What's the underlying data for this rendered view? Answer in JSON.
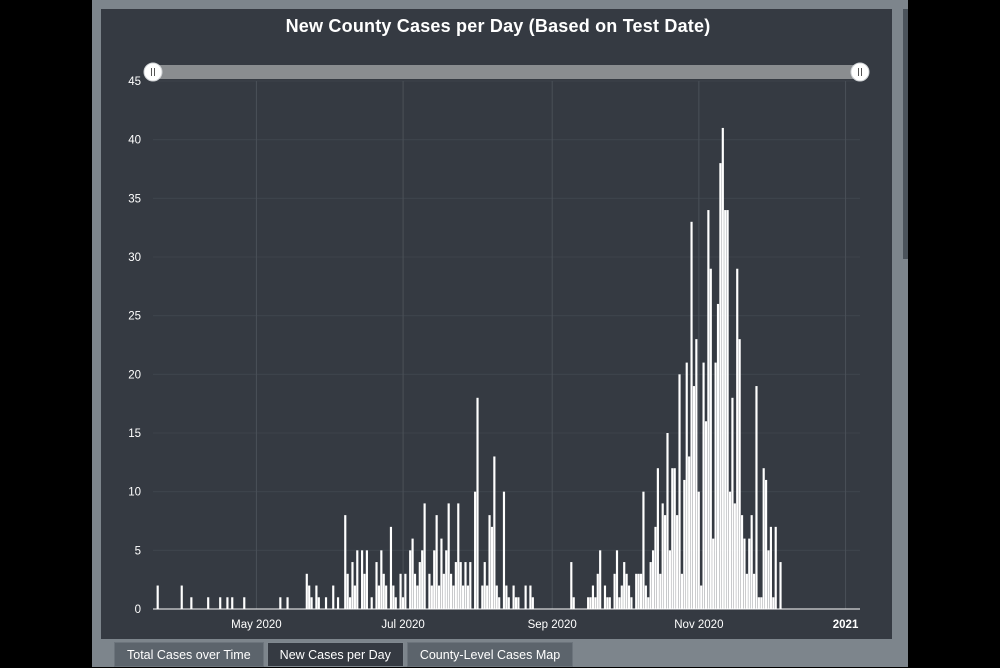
{
  "tabs": [
    {
      "label": "Total Cases over Time",
      "active": false
    },
    {
      "label": "New Cases per Day",
      "active": true
    },
    {
      "label": "County-Level Cases Map",
      "active": false
    }
  ],
  "colors": {
    "background": "#353a42",
    "bars": "#ffffff",
    "grid": "#4a5058",
    "scrollbar": "#8a8d90",
    "frame": "#7d858c"
  },
  "chart_data": {
    "type": "bar",
    "title": "New County Cases per Day (Based on Test Date)",
    "xlabel": "",
    "ylabel": "",
    "x_range": [
      "2020-03-19",
      "2021-01-07"
    ],
    "ylim": [
      0,
      45
    ],
    "y_ticks": [
      0,
      5,
      10,
      15,
      20,
      25,
      30,
      35,
      40,
      45
    ],
    "x_ticks": [
      {
        "date": "2020-05-01",
        "label": "May 2020",
        "bold": false
      },
      {
        "date": "2020-07-01",
        "label": "Jul 2020",
        "bold": false
      },
      {
        "date": "2020-09-01",
        "label": "Sep 2020",
        "bold": false
      },
      {
        "date": "2020-11-01",
        "label": "Nov 2020",
        "bold": false
      },
      {
        "date": "2021-01-01",
        "label": "2021",
        "bold": true
      }
    ],
    "grid": "vertical and horizontal",
    "range_slider": true,
    "series": [
      {
        "points": [
          [
            "2020-03-21",
            2
          ],
          [
            "2020-03-31",
            2
          ],
          [
            "2020-04-04",
            1
          ],
          [
            "2020-04-11",
            1
          ],
          [
            "2020-04-16",
            1
          ],
          [
            "2020-04-19",
            1
          ],
          [
            "2020-04-21",
            1
          ],
          [
            "2020-04-26",
            1
          ],
          [
            "2020-05-11",
            1
          ],
          [
            "2020-05-14",
            1
          ],
          [
            "2020-05-22",
            3
          ],
          [
            "2020-05-23",
            2
          ],
          [
            "2020-05-24",
            1
          ],
          [
            "2020-05-26",
            2
          ],
          [
            "2020-05-27",
            1
          ],
          [
            "2020-05-30",
            1
          ],
          [
            "2020-06-02",
            2
          ],
          [
            "2020-06-04",
            1
          ],
          [
            "2020-06-07",
            8
          ],
          [
            "2020-06-08",
            3
          ],
          [
            "2020-06-09",
            1
          ],
          [
            "2020-06-10",
            4
          ],
          [
            "2020-06-11",
            2
          ],
          [
            "2020-06-12",
            5
          ],
          [
            "2020-06-14",
            5
          ],
          [
            "2020-06-15",
            3
          ],
          [
            "2020-06-16",
            5
          ],
          [
            "2020-06-18",
            1
          ],
          [
            "2020-06-20",
            4
          ],
          [
            "2020-06-21",
            2
          ],
          [
            "2020-06-22",
            5
          ],
          [
            "2020-06-23",
            3
          ],
          [
            "2020-06-24",
            2
          ],
          [
            "2020-06-26",
            7
          ],
          [
            "2020-06-27",
            2
          ],
          [
            "2020-06-28",
            1
          ],
          [
            "2020-06-30",
            3
          ],
          [
            "2020-07-01",
            1
          ],
          [
            "2020-07-02",
            3
          ],
          [
            "2020-07-04",
            5
          ],
          [
            "2020-07-05",
            6
          ],
          [
            "2020-07-06",
            3
          ],
          [
            "2020-07-07",
            2
          ],
          [
            "2020-07-08",
            4
          ],
          [
            "2020-07-09",
            5
          ],
          [
            "2020-07-10",
            9
          ],
          [
            "2020-07-12",
            3
          ],
          [
            "2020-07-13",
            2
          ],
          [
            "2020-07-14",
            5
          ],
          [
            "2020-07-15",
            8
          ],
          [
            "2020-07-16",
            2
          ],
          [
            "2020-07-17",
            6
          ],
          [
            "2020-07-18",
            3
          ],
          [
            "2020-07-19",
            5
          ],
          [
            "2020-07-20",
            9
          ],
          [
            "2020-07-21",
            3
          ],
          [
            "2020-07-22",
            2
          ],
          [
            "2020-07-23",
            4
          ],
          [
            "2020-07-24",
            9
          ],
          [
            "2020-07-25",
            4
          ],
          [
            "2020-07-26",
            2
          ],
          [
            "2020-07-27",
            4
          ],
          [
            "2020-07-28",
            2
          ],
          [
            "2020-07-29",
            4
          ],
          [
            "2020-07-31",
            10
          ],
          [
            "2020-08-01",
            18
          ],
          [
            "2020-08-03",
            2
          ],
          [
            "2020-08-04",
            4
          ],
          [
            "2020-08-05",
            2
          ],
          [
            "2020-08-06",
            8
          ],
          [
            "2020-08-07",
            7
          ],
          [
            "2020-08-08",
            13
          ],
          [
            "2020-08-09",
            2
          ],
          [
            "2020-08-10",
            1
          ],
          [
            "2020-08-12",
            10
          ],
          [
            "2020-08-13",
            2
          ],
          [
            "2020-08-14",
            1
          ],
          [
            "2020-08-16",
            2
          ],
          [
            "2020-08-17",
            1
          ],
          [
            "2020-08-18",
            1
          ],
          [
            "2020-08-21",
            2
          ],
          [
            "2020-08-23",
            2
          ],
          [
            "2020-08-24",
            1
          ],
          [
            "2020-09-09",
            4
          ],
          [
            "2020-09-10",
            1
          ],
          [
            "2020-09-16",
            1
          ],
          [
            "2020-09-17",
            1
          ],
          [
            "2020-09-18",
            2
          ],
          [
            "2020-09-19",
            1
          ],
          [
            "2020-09-20",
            3
          ],
          [
            "2020-09-21",
            5
          ],
          [
            "2020-09-23",
            2
          ],
          [
            "2020-09-24",
            1
          ],
          [
            "2020-09-25",
            1
          ],
          [
            "2020-09-27",
            3
          ],
          [
            "2020-09-28",
            5
          ],
          [
            "2020-09-29",
            1
          ],
          [
            "2020-09-30",
            2
          ],
          [
            "2020-10-01",
            4
          ],
          [
            "2020-10-02",
            3
          ],
          [
            "2020-10-03",
            2
          ],
          [
            "2020-10-04",
            1
          ],
          [
            "2020-10-06",
            3
          ],
          [
            "2020-10-07",
            3
          ],
          [
            "2020-10-08",
            3
          ],
          [
            "2020-10-09",
            10
          ],
          [
            "2020-10-10",
            2
          ],
          [
            "2020-10-11",
            1
          ],
          [
            "2020-10-12",
            4
          ],
          [
            "2020-10-13",
            5
          ],
          [
            "2020-10-14",
            7
          ],
          [
            "2020-10-15",
            12
          ],
          [
            "2020-10-16",
            3
          ],
          [
            "2020-10-17",
            9
          ],
          [
            "2020-10-18",
            8
          ],
          [
            "2020-10-19",
            15
          ],
          [
            "2020-10-20",
            5
          ],
          [
            "2020-10-21",
            12
          ],
          [
            "2020-10-22",
            12
          ],
          [
            "2020-10-23",
            8
          ],
          [
            "2020-10-24",
            20
          ],
          [
            "2020-10-25",
            3
          ],
          [
            "2020-10-26",
            11
          ],
          [
            "2020-10-27",
            21
          ],
          [
            "2020-10-28",
            13
          ],
          [
            "2020-10-29",
            33
          ],
          [
            "2020-10-30",
            19
          ],
          [
            "2020-10-31",
            23
          ],
          [
            "2020-11-01",
            10
          ],
          [
            "2020-11-02",
            2
          ],
          [
            "2020-11-03",
            21
          ],
          [
            "2020-11-04",
            16
          ],
          [
            "2020-11-05",
            34
          ],
          [
            "2020-11-06",
            29
          ],
          [
            "2020-11-07",
            6
          ],
          [
            "2020-11-08",
            21
          ],
          [
            "2020-11-09",
            26
          ],
          [
            "2020-11-10",
            38
          ],
          [
            "2020-11-11",
            41
          ],
          [
            "2020-11-12",
            34
          ],
          [
            "2020-11-13",
            34
          ],
          [
            "2020-11-14",
            10
          ],
          [
            "2020-11-15",
            18
          ],
          [
            "2020-11-16",
            9
          ],
          [
            "2020-11-17",
            29
          ],
          [
            "2020-11-18",
            23
          ],
          [
            "2020-11-19",
            8
          ],
          [
            "2020-11-20",
            6
          ],
          [
            "2020-11-21",
            3
          ],
          [
            "2020-11-22",
            6
          ],
          [
            "2020-11-23",
            8
          ],
          [
            "2020-11-24",
            3
          ],
          [
            "2020-11-25",
            19
          ],
          [
            "2020-11-26",
            1
          ],
          [
            "2020-11-27",
            1
          ],
          [
            "2020-11-28",
            12
          ],
          [
            "2020-11-29",
            11
          ],
          [
            "2020-11-30",
            5
          ],
          [
            "2020-12-01",
            7
          ],
          [
            "2020-12-02",
            1
          ],
          [
            "2020-12-03",
            7
          ],
          [
            "2020-12-05",
            4
          ]
        ]
      }
    ]
  }
}
